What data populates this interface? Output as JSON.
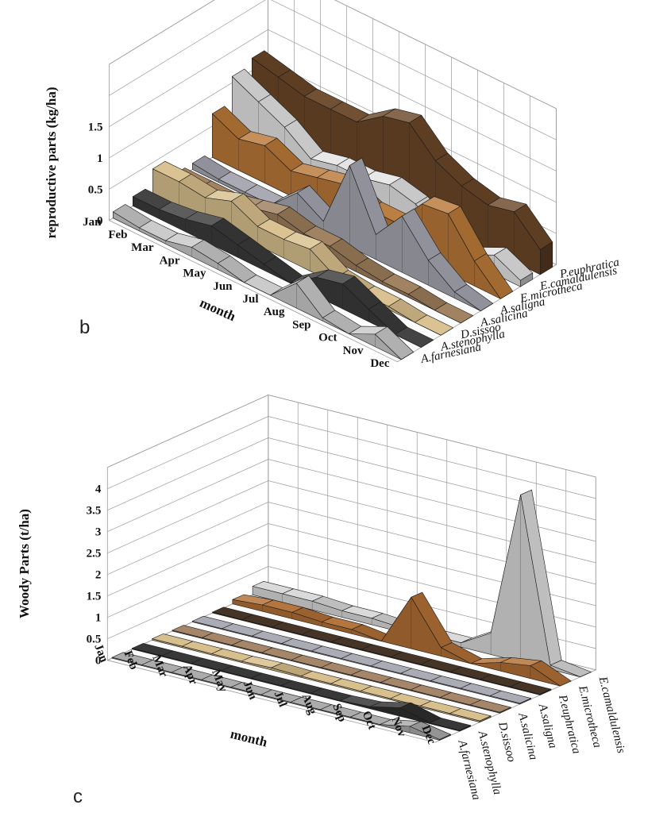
{
  "panels": [
    {
      "id": "b",
      "label": "b"
    },
    {
      "id": "c",
      "label": "c"
    }
  ],
  "chart_data": [
    {
      "type": "area",
      "render": "3d-ribbon",
      "panel_label": "b",
      "ylabel": "reproductive parts (kg/ha)",
      "xlabel": "month",
      "ylim": [
        0,
        1.5
      ],
      "yticks": [
        0,
        0.5,
        1,
        1.5
      ],
      "categories": [
        "Jan",
        "Feb",
        "Mar",
        "Apr",
        "May",
        "Jun",
        "Jul",
        "Aug",
        "Sep",
        "Oct",
        "Nov",
        "Dec"
      ],
      "series": [
        {
          "name": "A.farnesiana",
          "color": "#c8c8c8",
          "values": [
            0.1,
            0.05,
            0.05,
            0.15,
            0.1,
            0.0,
            0.0,
            0.4,
            0.05,
            0.0,
            0.2,
            0.0
          ]
        },
        {
          "name": "A.stenophylla",
          "color": "#3a3a3a",
          "values": [
            0.15,
            0.15,
            0.2,
            0.3,
            0.2,
            0.1,
            0.0,
            0.3,
            0.4,
            0.2,
            0.0,
            0.0
          ]
        },
        {
          "name": "D.sissoo",
          "color": "#d8bf8c",
          "values": [
            0.4,
            0.4,
            0.35,
            0.5,
            0.3,
            0.3,
            0.35,
            0.1,
            0.05,
            0.05,
            0.0,
            0.0
          ]
        },
        {
          "name": "A.salicina",
          "color": "#9c7c5a",
          "values": [
            0.1,
            0.1,
            0.1,
            0.2,
            0.3,
            0.2,
            0.2,
            0.1,
            0.05,
            0.05,
            0.0,
            0.0
          ]
        },
        {
          "name": "A.saligna",
          "color": "#a5a5b0",
          "values": [
            0.1,
            0.05,
            0.05,
            0.05,
            0.45,
            0.2,
            1.3,
            0.4,
            0.9,
            0.4,
            0.1,
            0.0
          ]
        },
        {
          "name": "E.microtheca",
          "color": "#b87838",
          "values": [
            0.7,
            0.5,
            0.6,
            0.4,
            0.5,
            0.6,
            0.4,
            0.4,
            0.9,
            0.95,
            0.4,
            0.0
          ]
        },
        {
          "name": "E.camaldulensis",
          "color": "#e3e3e3",
          "values": [
            1.1,
            0.9,
            0.7,
            0.4,
            0.5,
            0.5,
            0.6,
            0.5,
            0.2,
            0.1,
            0.3,
            0.1
          ]
        },
        {
          "name": "P.euphratica",
          "color": "#6b4728",
          "values": [
            1.2,
            1.1,
            1.0,
            1.0,
            1.0,
            1.3,
            1.4,
            1.0,
            0.8,
            0.7,
            0.8,
            0.4
          ]
        }
      ]
    },
    {
      "type": "area",
      "render": "3d-ribbon",
      "panel_label": "c",
      "ylabel": "Woody Parts (t/ha)",
      "xlabel": "month",
      "ylim": [
        0,
        4
      ],
      "yticks": [
        0,
        0.5,
        1,
        1.5,
        2,
        2.5,
        3,
        3.5,
        4
      ],
      "categories": [
        "Jan",
        "Feb",
        "Mar",
        "Apr",
        "May",
        "Jun",
        "Jul",
        "Aug",
        "Sep",
        "Oct",
        "Nov",
        "Dec"
      ],
      "series": [
        {
          "name": "A.farnesiana",
          "color": "#a8a8a8",
          "values": [
            0.02,
            0.02,
            0.02,
            0.02,
            0.02,
            0.02,
            0.02,
            0.02,
            0.02,
            0.02,
            0.15,
            0.02
          ]
        },
        {
          "name": "A.stenophylla",
          "color": "#2e2e2e",
          "values": [
            0.02,
            0.02,
            0.02,
            0.02,
            0.02,
            0.02,
            0.02,
            0.02,
            0.05,
            0.2,
            0.02,
            0.02
          ]
        },
        {
          "name": "D.sissoo",
          "color": "#d6bd88",
          "values": [
            0.03,
            0.03,
            0.03,
            0.03,
            0.05,
            0.03,
            0.03,
            0.03,
            0.03,
            0.03,
            0.03,
            0.03
          ]
        },
        {
          "name": "A.salicina",
          "color": "#a08060",
          "values": [
            0.02,
            0.02,
            0.02,
            0.02,
            0.02,
            0.02,
            0.02,
            0.02,
            0.02,
            0.02,
            0.02,
            0.02
          ]
        },
        {
          "name": "A.saligna",
          "color": "#a7a7b2",
          "values": [
            0.02,
            0.02,
            0.02,
            0.02,
            0.02,
            0.02,
            0.02,
            0.02,
            0.02,
            0.02,
            0.02,
            0.02
          ]
        },
        {
          "name": "P.euphratica",
          "color": "#3c2a1c",
          "values": [
            0.02,
            0.02,
            0.02,
            0.02,
            0.02,
            0.02,
            0.02,
            0.02,
            0.02,
            0.02,
            0.02,
            0.02
          ]
        },
        {
          "name": "E.microtheca",
          "color": "#b06e34",
          "values": [
            0.1,
            0.15,
            0.15,
            0.1,
            0.1,
            0.0,
            1.2,
            0.2,
            0.0,
            0.2,
            0.3,
            0.0
          ]
        },
        {
          "name": "E.camaldulensis",
          "color": "#d8d8d8",
          "values": [
            0.2,
            0.2,
            0.2,
            0.15,
            0.15,
            0.1,
            0.1,
            0.1,
            0.5,
            3.9,
            0.1,
            0.0
          ]
        }
      ]
    }
  ]
}
